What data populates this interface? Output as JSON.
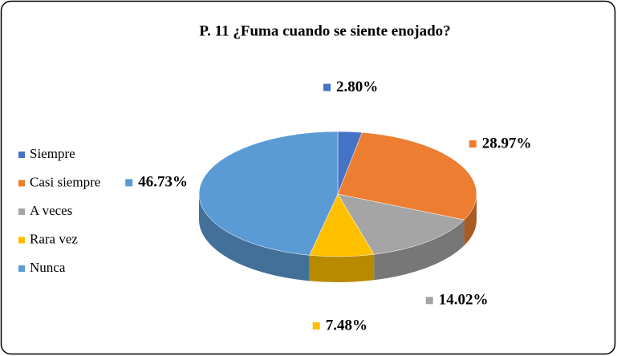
{
  "chart_data": {
    "type": "pie3d",
    "title": "P. 11 ¿Fuma cuando se siente enojado?",
    "categories": [
      "Siempre",
      "Casi siempre",
      "A veces",
      "Rara vez",
      "Nunca"
    ],
    "values": [
      2.8,
      28.97,
      14.02,
      7.48,
      46.73
    ],
    "value_labels": [
      "2.80%",
      "28.97%",
      "14.02%",
      "7.48%",
      "46.73%"
    ],
    "colors": [
      "#4472c4",
      "#ed7d31",
      "#a5a5a5",
      "#ffc000",
      "#5b9bd5"
    ],
    "legend": "left"
  }
}
